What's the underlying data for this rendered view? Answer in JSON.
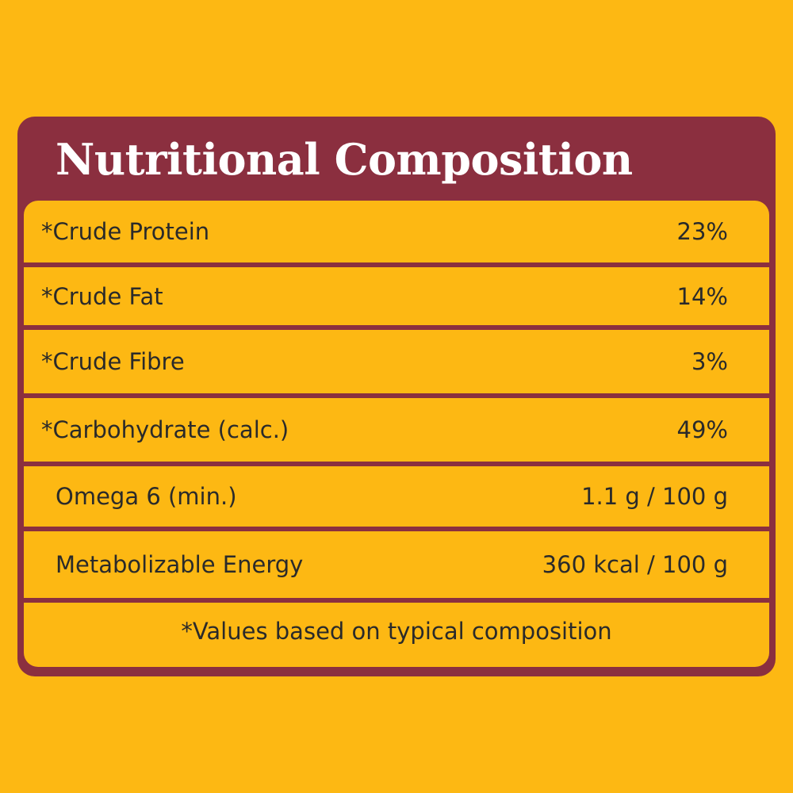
{
  "title": "Nutritional Composition",
  "rows": [
    {
      "label": "*Crude Protein",
      "value": "23%"
    },
    {
      "label": "*Crude Fat",
      "value": "14%"
    },
    {
      "label": "*Crude Fibre",
      "value": "3%"
    },
    {
      "label": "*Carbohydrate (calc.)",
      "value": "49%"
    },
    {
      "label": "Omega 6 (min.)",
      "value": "1.1 g / 100 g"
    },
    {
      "label": "Metabolizable Energy",
      "value": "360 kcal / 100 g"
    }
  ],
  "footnote": "*Values based on typical composition",
  "colors": {
    "background": "#FDB813",
    "panel": "#8B2F3F",
    "text": "#2A2A2A",
    "title_text": "#FFFFFF"
  }
}
